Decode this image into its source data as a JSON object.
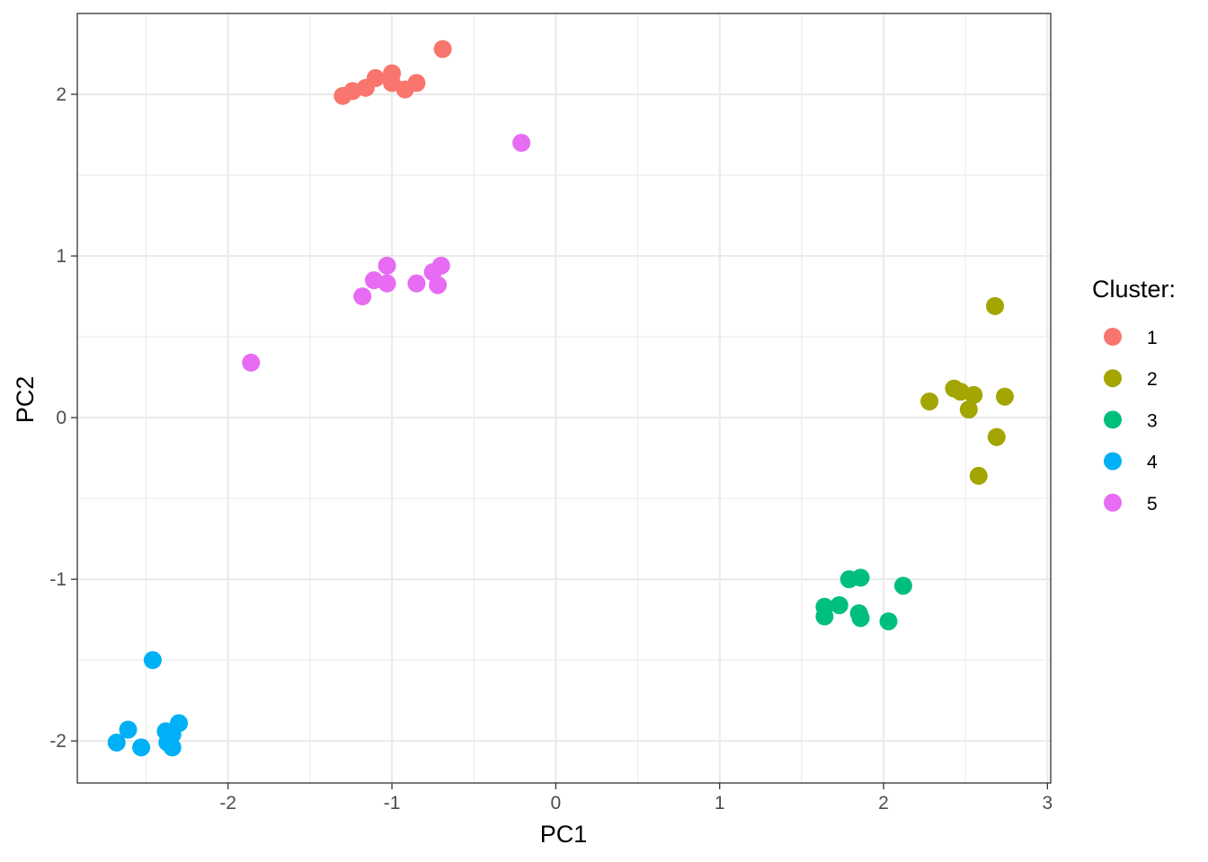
{
  "chart_data": {
    "type": "scatter",
    "title": "",
    "xlabel": "PC1",
    "ylabel": "PC2",
    "xlim": [
      -2.92,
      3.02
    ],
    "ylim": [
      -2.26,
      2.5
    ],
    "x_ticks": [
      -2,
      -1,
      0,
      1,
      2,
      3
    ],
    "y_ticks": [
      -2,
      -1,
      0,
      1,
      2
    ],
    "x_minor_ticks": [
      -2.5,
      -1.5,
      -0.5,
      0.5,
      1.5,
      2.5
    ],
    "y_minor_ticks": [
      -1.5,
      -0.5,
      0.5,
      1.5
    ],
    "grid": true,
    "legend": {
      "title": "Cluster:",
      "position": "right"
    },
    "series": [
      {
        "name": "1",
        "color": "#F8766D",
        "points": [
          {
            "x": -1.3,
            "y": 1.99
          },
          {
            "x": -1.24,
            "y": 2.02
          },
          {
            "x": -1.16,
            "y": 2.04
          },
          {
            "x": -1.1,
            "y": 2.1
          },
          {
            "x": -1.0,
            "y": 2.13
          },
          {
            "x": -1.0,
            "y": 2.07
          },
          {
            "x": -0.92,
            "y": 2.03
          },
          {
            "x": -0.85,
            "y": 2.07
          },
          {
            "x": -0.69,
            "y": 2.28
          }
        ]
      },
      {
        "name": "2",
        "color": "#A3A500",
        "points": [
          {
            "x": 2.68,
            "y": 0.69
          },
          {
            "x": 2.28,
            "y": 0.1
          },
          {
            "x": 2.43,
            "y": 0.18
          },
          {
            "x": 2.47,
            "y": 0.16
          },
          {
            "x": 2.55,
            "y": 0.14
          },
          {
            "x": 2.52,
            "y": 0.05
          },
          {
            "x": 2.74,
            "y": 0.13
          },
          {
            "x": 2.69,
            "y": -0.12
          },
          {
            "x": 2.58,
            "y": -0.36
          }
        ]
      },
      {
        "name": "3",
        "color": "#00BF7D",
        "points": [
          {
            "x": 1.79,
            "y": -1.0
          },
          {
            "x": 1.86,
            "y": -0.99
          },
          {
            "x": 2.12,
            "y": -1.04
          },
          {
            "x": 1.64,
            "y": -1.17
          },
          {
            "x": 1.73,
            "y": -1.16
          },
          {
            "x": 1.85,
            "y": -1.21
          },
          {
            "x": 1.64,
            "y": -1.23
          },
          {
            "x": 1.86,
            "y": -1.24
          },
          {
            "x": 2.03,
            "y": -1.26
          }
        ]
      },
      {
        "name": "4",
        "color": "#00B0F6",
        "points": [
          {
            "x": -2.46,
            "y": -1.5
          },
          {
            "x": -2.3,
            "y": -1.89
          },
          {
            "x": -2.61,
            "y": -1.93
          },
          {
            "x": -2.38,
            "y": -1.94
          },
          {
            "x": -2.34,
            "y": -1.96
          },
          {
            "x": -2.68,
            "y": -2.01
          },
          {
            "x": -2.37,
            "y": -2.01
          },
          {
            "x": -2.53,
            "y": -2.04
          },
          {
            "x": -2.34,
            "y": -2.04
          }
        ]
      },
      {
        "name": "5",
        "color": "#E76BF3",
        "points": [
          {
            "x": -0.21,
            "y": 1.7
          },
          {
            "x": -1.03,
            "y": 0.94
          },
          {
            "x": -0.7,
            "y": 0.94
          },
          {
            "x": -0.75,
            "y": 0.9
          },
          {
            "x": -1.11,
            "y": 0.85
          },
          {
            "x": -1.03,
            "y": 0.83
          },
          {
            "x": -0.85,
            "y": 0.83
          },
          {
            "x": -0.72,
            "y": 0.82
          },
          {
            "x": -1.18,
            "y": 0.75
          },
          {
            "x": -1.86,
            "y": 0.34
          }
        ]
      }
    ]
  }
}
